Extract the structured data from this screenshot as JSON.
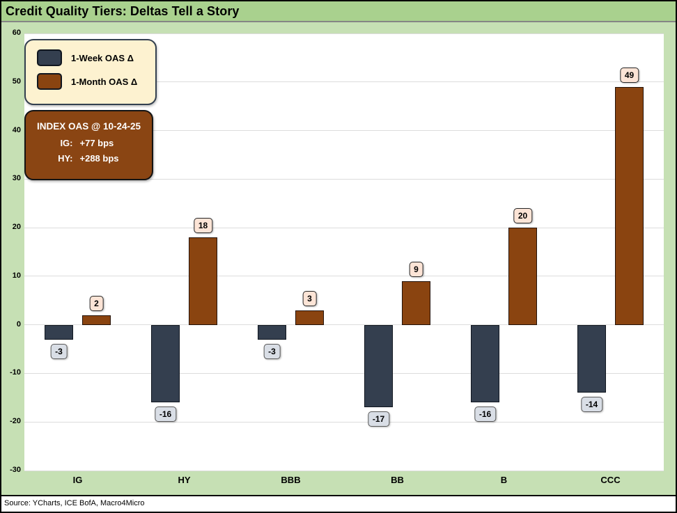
{
  "title": "Credit Quality Tiers: Deltas Tell a Story",
  "source_note": "Source: YCharts, ICE BofA, Macro4Micro",
  "info_box": {
    "title": "INDEX OAS @ 10-24-25",
    "rows": [
      {
        "label": "IG:",
        "value": "+77 bps"
      },
      {
        "label": "HY:",
        "value": "+288 bps"
      }
    ]
  },
  "chart_data": {
    "type": "bar",
    "title": "Credit Quality Tiers: Deltas Tell a Story",
    "categories": [
      "IG",
      "HY",
      "BBB",
      "BB",
      "B",
      "CCC"
    ],
    "series": [
      {
        "name": "1-Week OAS Δ",
        "color": "#343F4F",
        "border_color": "#10161f",
        "values": [
          -3,
          -16,
          -3,
          -17,
          -16,
          -14
        ]
      },
      {
        "name": "1-Month OAS Δ",
        "color": "#8A4410",
        "border_color": "#23120a",
        "values": [
          2,
          18,
          3,
          9,
          20,
          49
        ]
      }
    ],
    "ylim": [
      -30,
      60
    ],
    "yticks": [
      60,
      50,
      40,
      30,
      20,
      10,
      0,
      -10,
      -20,
      -30
    ],
    "grid": true,
    "legend_position": "top-left",
    "xlabel": "",
    "ylabel": ""
  },
  "colors": {
    "title_bar_bg": "#a9d18e",
    "canvas_bg": "#c6e0b4",
    "plot_bg": "#ffffff",
    "gridline": "#dcdcdc",
    "week_series": "#343F4F",
    "month_series": "#8A4410",
    "legend_bg": "#fdf2d0",
    "legend_border": "#33404f",
    "info_box_bg": "#8a4513",
    "info_box_text": "#ffffff",
    "positive_label_bg": "#fce4d6",
    "positive_label_border": "#262626",
    "negative_label_bg": "#d9dee6",
    "negative_label_border": "#595959"
  }
}
